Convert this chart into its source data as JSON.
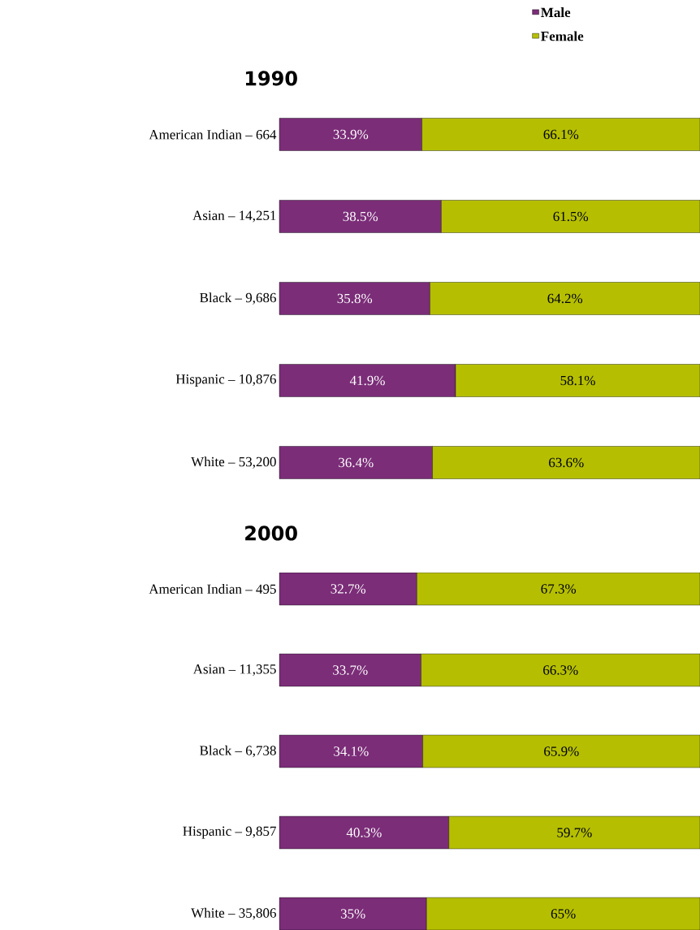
{
  "chart_data": [
    {
      "type": "bar",
      "title": "1990",
      "orientation": "horizontal",
      "stacked": true,
      "legend": "top right",
      "tick_labels": "y",
      "xlim": [
        0,
        100
      ],
      "categories": [
        "American Indian –      664",
        "Asian – 14,251",
        "Black –   9,686",
        "Hispanic – 10,876",
        "White – 53,200"
      ],
      "series": [
        {
          "name": "Male",
          "color": "#7b2d78",
          "values": [
            33.9,
            38.5,
            35.8,
            41.9,
            36.4
          ],
          "value_labels": [
            "33.9%",
            "38.5%",
            "35.8%",
            "41.9%",
            "36.4%"
          ]
        },
        {
          "name": "Female",
          "color": "#b5bf00",
          "values": [
            66.1,
            61.5,
            64.2,
            58.1,
            63.6
          ],
          "value_labels": [
            "66.1%",
            "61.5%",
            "64.2%",
            "58.1%",
            "63.6%"
          ]
        }
      ]
    },
    {
      "type": "bar",
      "title": "2000",
      "orientation": "horizontal",
      "stacked": true,
      "tick_labels": "y",
      "xlim": [
        0,
        100
      ],
      "categories": [
        "American Indian –      495",
        "Asian – 11,355",
        "Black  –   6,738",
        "Hispanic  –   9,857",
        "White – 35,806"
      ],
      "series": [
        {
          "color": "#7b2d78",
          "values": [
            32.7,
            33.7,
            34.1,
            40.3,
            35
          ],
          "value_labels": [
            "32.7%",
            "33.7%",
            "34.1%",
            "40.3%",
            "35%"
          ]
        },
        {
          "color": "#b5bf00",
          "values": [
            67.3,
            66.3,
            65.9,
            59.7,
            65
          ],
          "value_labels": [
            "67.3%",
            "66.3%",
            "65.9%",
            "59.7%",
            "65%"
          ]
        }
      ]
    }
  ]
}
